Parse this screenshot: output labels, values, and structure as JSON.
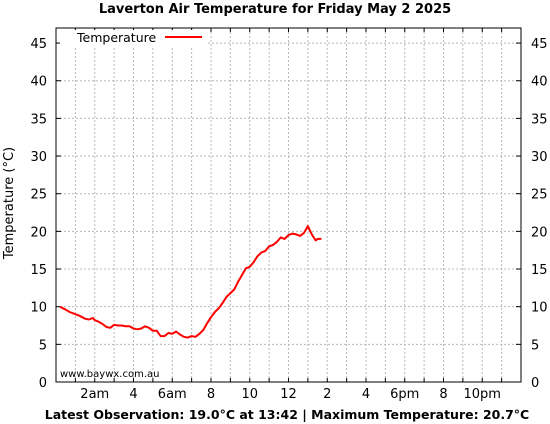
{
  "chart_data": {
    "type": "line",
    "title": "Laverton Air Temperature  for Friday May 2 2025",
    "ylabel": "Temperature (°C)",
    "xlabel": "",
    "xlim": [
      0,
      24
    ],
    "ylim": [
      0,
      47
    ],
    "yticks": [
      0,
      5,
      10,
      15,
      20,
      25,
      30,
      35,
      40,
      45
    ],
    "xticks": [
      {
        "hour": 2,
        "label": "2am"
      },
      {
        "hour": 4,
        "label": "4"
      },
      {
        "hour": 6,
        "label": "6am"
      },
      {
        "hour": 8,
        "label": "8"
      },
      {
        "hour": 10,
        "label": "10"
      },
      {
        "hour": 12,
        "label": "12"
      },
      {
        "hour": 14,
        "label": "2"
      },
      {
        "hour": 16,
        "label": "4"
      },
      {
        "hour": 18,
        "label": "6pm"
      },
      {
        "hour": 20,
        "label": "8"
      },
      {
        "hour": 22,
        "label": "10pm"
      }
    ],
    "grid": true,
    "legend_position": "top-left",
    "series": [
      {
        "name": "Temperature",
        "color": "#ff0000",
        "x": [
          0.2,
          0.5,
          0.7,
          1.0,
          1.2,
          1.5,
          1.7,
          1.9,
          2.0,
          2.2,
          2.4,
          2.6,
          2.8,
          3.0,
          3.2,
          3.4,
          3.6,
          3.8,
          4.0,
          4.2,
          4.4,
          4.6,
          4.8,
          5.0,
          5.2,
          5.4,
          5.6,
          5.8,
          6.0,
          6.2,
          6.4,
          6.6,
          6.8,
          7.0,
          7.2,
          7.4,
          7.6,
          7.8,
          8.0,
          8.2,
          8.4,
          8.6,
          8.8,
          9.0,
          9.2,
          9.4,
          9.6,
          9.8,
          10.0,
          10.2,
          10.4,
          10.6,
          10.8,
          11.0,
          11.2,
          11.4,
          11.6,
          11.8,
          12.0,
          12.2,
          12.4,
          12.6,
          12.8,
          13.0,
          13.2,
          13.4,
          13.5,
          13.6,
          13.7
        ],
        "y": [
          10.0,
          9.6,
          9.3,
          9.0,
          8.8,
          8.4,
          8.3,
          8.5,
          8.2,
          8.0,
          7.7,
          7.3,
          7.2,
          7.6,
          7.5,
          7.5,
          7.4,
          7.4,
          7.1,
          7.0,
          7.1,
          7.4,
          7.2,
          6.8,
          6.8,
          6.1,
          6.1,
          6.5,
          6.4,
          6.7,
          6.3,
          6.0,
          5.9,
          6.1,
          6.0,
          6.4,
          6.9,
          7.8,
          8.6,
          9.3,
          9.8,
          10.5,
          11.3,
          11.8,
          12.3,
          13.3,
          14.2,
          15.1,
          15.3,
          15.9,
          16.7,
          17.2,
          17.4,
          18.0,
          18.2,
          18.6,
          19.2,
          19.0,
          19.5,
          19.7,
          19.6,
          19.4,
          19.8,
          20.7,
          19.6,
          18.8,
          19.0,
          19.0,
          19.0
        ],
        "observations_end_time": "13:42"
      }
    ]
  },
  "credit": "www.baywx.com.au",
  "footer": "Latest Observation: 19.0°C at 13:42 | Maximum Temperature: 20.7°C"
}
